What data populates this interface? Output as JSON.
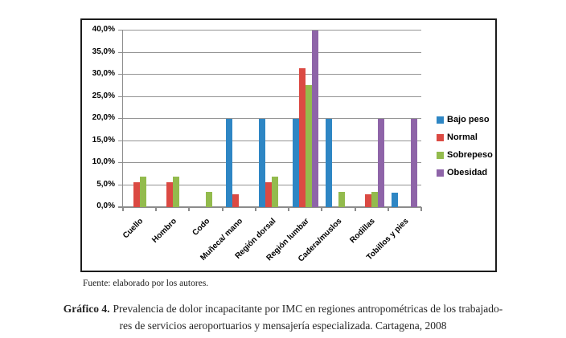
{
  "chart_data": {
    "type": "bar",
    "title": "",
    "xlabel": "",
    "ylabel": "",
    "ylim": [
      0,
      40
    ],
    "ytick_step": 5,
    "yticklabels": [
      "0,0%",
      "5,0%",
      "10,0%",
      "15,0%",
      "20,0%",
      "25,0%",
      "30,0%",
      "35,0%",
      "40,0%"
    ],
    "grid": true,
    "legend_position": "right",
    "categories": [
      "Cuello",
      "Hombro",
      "Codo",
      "Muñeca/ mano",
      "Región dorsal",
      "Región lumbar",
      "Cadera/muslos",
      "Rodillas",
      "Tobillos y pies"
    ],
    "series": [
      {
        "name": "Bajo peso",
        "color": "#2E86C4",
        "values": [
          0,
          0,
          0,
          20,
          20,
          20,
          20,
          0,
          3.3
        ]
      },
      {
        "name": "Normal",
        "color": "#DB4A43",
        "values": [
          5.7,
          5.7,
          0,
          2.9,
          5.7,
          31.4,
          0,
          2.9,
          0
        ]
      },
      {
        "name": "Sobrepeso",
        "color": "#93BB4D",
        "values": [
          6.9,
          6.9,
          3.4,
          0,
          6.9,
          27.6,
          3.4,
          3.4,
          0
        ]
      },
      {
        "name": "Obesidad",
        "color": "#8E64A8",
        "values": [
          0,
          0,
          0,
          0,
          0,
          40,
          0,
          20,
          20
        ]
      }
    ],
    "gridline_color": "#949494",
    "axis_color": "#8c8c8c"
  },
  "source_note": "Fuente: elaborado por los autores.",
  "caption": {
    "figure_label": "Gráfico 4.",
    "line1": "Prevalencia de dolor incapacitante por IMC en regiones antropométricas de los trabajado-",
    "line2": "res de servicios aeroportuarios y mensajería especializada. Cartagena, 2008"
  }
}
